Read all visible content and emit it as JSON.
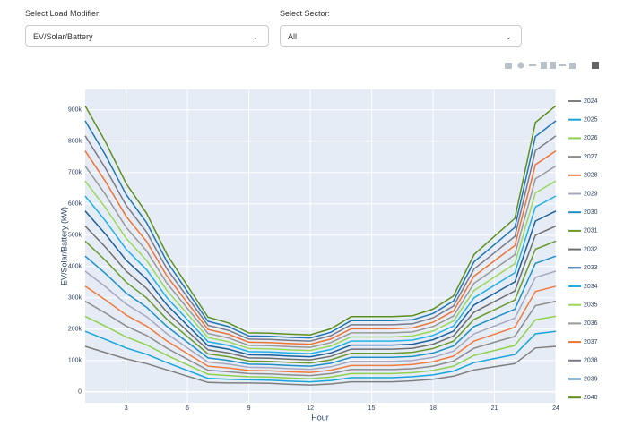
{
  "controls": {
    "load_modifier": {
      "label": "Select Load Modifier:",
      "value": "EV/Solar/Battery"
    },
    "sector": {
      "label": "Select Sector:",
      "value": "All"
    }
  },
  "chart_data": {
    "type": "line",
    "x_label": "Hour",
    "y_label": "EV/Solar/Battery (kW)",
    "x": [
      1,
      2,
      3,
      4,
      5,
      6,
      7,
      8,
      9,
      10,
      11,
      12,
      13,
      14,
      15,
      16,
      17,
      18,
      19,
      20,
      21,
      22,
      23,
      24
    ],
    "xlim": [
      1,
      24
    ],
    "xticks": [
      3,
      6,
      9,
      12,
      15,
      18,
      21,
      24
    ],
    "ylim": [
      -35000,
      965000
    ],
    "yticks": [
      0,
      {
        "value": 100000,
        "label": "100k"
      },
      {
        "value": 200000,
        "label": "200k"
      },
      {
        "value": 300000,
        "label": "300k"
      },
      {
        "value": 400000,
        "label": "400k"
      },
      {
        "value": 500000,
        "label": "500k"
      },
      {
        "value": 600000,
        "label": "600k"
      },
      {
        "value": 700000,
        "label": "700k"
      },
      {
        "value": 800000,
        "label": "800k"
      },
      {
        "value": 900000,
        "label": "900k"
      }
    ],
    "grid": true,
    "series": [
      {
        "name": "2024",
        "color": "#7f7f7f",
        "values": [
          145000,
          125000,
          105000,
          90000,
          70000,
          50000,
          30000,
          28000,
          28000,
          27000,
          24000,
          22000,
          25000,
          32000,
          32000,
          32000,
          35000,
          40000,
          50000,
          70000,
          80000,
          90000,
          140000,
          145000
        ]
      },
      {
        "name": "2025",
        "color": "#17a5dc",
        "values": [
          193000,
          167000,
          140000,
          120000,
          93000,
          68000,
          43000,
          40000,
          38000,
          37000,
          34000,
          32000,
          36000,
          45000,
          45000,
          45000,
          48000,
          54000,
          66000,
          93000,
          106000,
          119000,
          185000,
          193000
        ]
      },
      {
        "name": "2026",
        "color": "#8fd14f",
        "values": [
          241000,
          209000,
          175000,
          150000,
          116000,
          86000,
          56000,
          52000,
          48000,
          47000,
          44000,
          42000,
          47000,
          58000,
          58000,
          58000,
          61000,
          68000,
          82000,
          116000,
          132000,
          148000,
          230000,
          241000
        ]
      },
      {
        "name": "2027",
        "color": "#8c8c8c",
        "values": [
          289000,
          251000,
          210000,
          180000,
          139000,
          104000,
          69000,
          64000,
          58000,
          57000,
          54000,
          52000,
          58000,
          71000,
          71000,
          71000,
          74000,
          82000,
          98000,
          139000,
          158000,
          177000,
          275000,
          289000
        ]
      },
      {
        "name": "2028",
        "color": "#f07b3f",
        "values": [
          337000,
          293000,
          245000,
          210000,
          162000,
          122000,
          82000,
          76000,
          68000,
          67000,
          64000,
          62000,
          69000,
          84000,
          84000,
          84000,
          87000,
          96000,
          114000,
          162000,
          184000,
          206000,
          320000,
          337000
        ]
      },
      {
        "name": "2029",
        "color": "#a8a8c0",
        "values": [
          385000,
          335000,
          280000,
          240000,
          185000,
          140000,
          95000,
          88000,
          78000,
          77000,
          74000,
          72000,
          80000,
          97000,
          97000,
          97000,
          100000,
          110000,
          130000,
          185000,
          210000,
          235000,
          365000,
          385000
        ]
      },
      {
        "name": "2030",
        "color": "#1f8fc7",
        "values": [
          433000,
          377000,
          315000,
          270000,
          208000,
          158000,
          108000,
          100000,
          88000,
          87000,
          84000,
          82000,
          91000,
          110000,
          110000,
          110000,
          113000,
          124000,
          146000,
          208000,
          236000,
          264000,
          410000,
          433000
        ]
      },
      {
        "name": "2031",
        "color": "#6a9a2c",
        "values": [
          481000,
          419000,
          350000,
          300000,
          231000,
          176000,
          121000,
          112000,
          98000,
          97000,
          94000,
          92000,
          102000,
          123000,
          123000,
          123000,
          126000,
          138000,
          162000,
          231000,
          262000,
          293000,
          455000,
          481000
        ]
      },
      {
        "name": "2032",
        "color": "#6f6f6f",
        "values": [
          529000,
          461000,
          385000,
          330000,
          254000,
          194000,
          134000,
          124000,
          108000,
          107000,
          104000,
          102000,
          113000,
          136000,
          136000,
          136000,
          139000,
          152000,
          178000,
          254000,
          288000,
          322000,
          500000,
          529000
        ]
      },
      {
        "name": "2033",
        "color": "#1b5f9e",
        "values": [
          577000,
          503000,
          420000,
          360000,
          277000,
          212000,
          147000,
          136000,
          118000,
          117000,
          114000,
          112000,
          124000,
          149000,
          149000,
          149000,
          152000,
          166000,
          194000,
          277000,
          314000,
          351000,
          545000,
          577000
        ]
      },
      {
        "name": "2034",
        "color": "#22b0e6",
        "values": [
          625000,
          545000,
          455000,
          390000,
          300000,
          230000,
          160000,
          148000,
          128000,
          127000,
          124000,
          122000,
          135000,
          162000,
          162000,
          162000,
          165000,
          180000,
          210000,
          300000,
          340000,
          380000,
          590000,
          625000
        ]
      },
      {
        "name": "2035",
        "color": "#9ad85a",
        "values": [
          673000,
          587000,
          490000,
          420000,
          323000,
          248000,
          173000,
          160000,
          138000,
          137000,
          134000,
          132000,
          146000,
          175000,
          175000,
          175000,
          178000,
          194000,
          226000,
          323000,
          366000,
          409000,
          635000,
          673000
        ]
      },
      {
        "name": "2036",
        "color": "#999999",
        "values": [
          721000,
          629000,
          525000,
          450000,
          346000,
          266000,
          186000,
          172000,
          148000,
          147000,
          144000,
          142000,
          157000,
          188000,
          188000,
          188000,
          191000,
          208000,
          242000,
          346000,
          392000,
          438000,
          680000,
          721000
        ]
      },
      {
        "name": "2037",
        "color": "#ee7434",
        "values": [
          769000,
          671000,
          560000,
          480000,
          369000,
          284000,
          199000,
          184000,
          158000,
          157000,
          154000,
          152000,
          168000,
          201000,
          201000,
          201000,
          204000,
          222000,
          258000,
          369000,
          418000,
          467000,
          725000,
          769000
        ]
      },
      {
        "name": "2038",
        "color": "#7a7a8a",
        "values": [
          817000,
          713000,
          595000,
          510000,
          392000,
          302000,
          212000,
          196000,
          168000,
          167000,
          164000,
          162000,
          179000,
          214000,
          214000,
          214000,
          217000,
          236000,
          274000,
          392000,
          444000,
          496000,
          770000,
          817000
        ]
      },
      {
        "name": "2039",
        "color": "#1f77b4",
        "values": [
          865000,
          755000,
          630000,
          540000,
          415000,
          320000,
          225000,
          208000,
          178000,
          177000,
          174000,
          172000,
          190000,
          227000,
          227000,
          227000,
          230000,
          250000,
          290000,
          415000,
          470000,
          525000,
          815000,
          865000
        ]
      },
      {
        "name": "2040",
        "color": "#5e8f1e",
        "values": [
          913000,
          797000,
          665000,
          570000,
          438000,
          338000,
          238000,
          220000,
          188000,
          187000,
          184000,
          182000,
          201000,
          240000,
          240000,
          240000,
          243000,
          264000,
          306000,
          438000,
          496000,
          554000,
          860000,
          913000
        ]
      }
    ]
  }
}
